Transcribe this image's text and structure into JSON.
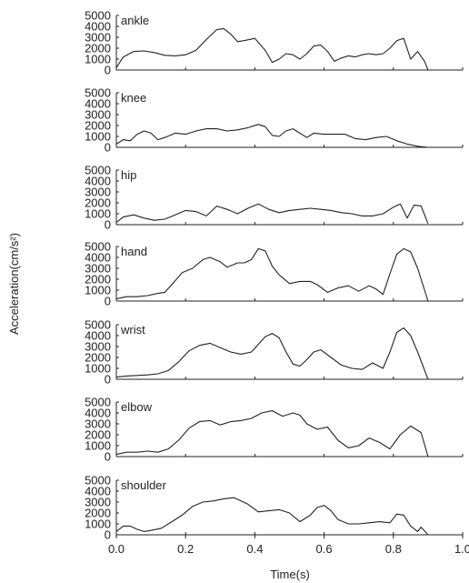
{
  "chart_data": {
    "type": "line",
    "xlabel": "Time(s)",
    "ylabel": "Acceleration(cm/s²)",
    "xlim": [
      0.0,
      1.0
    ],
    "xticks": [
      "0.0",
      "0.2",
      "0.4",
      "0.6",
      "0.8",
      "1.0"
    ],
    "ylim": [
      0,
      5000
    ],
    "yticks": [
      "0",
      "1000",
      "2000",
      "3000",
      "4000",
      "5000"
    ],
    "grid": false,
    "line_color": "#222222",
    "panels": [
      {
        "label": "ankle",
        "x": [
          0.0,
          0.02,
          0.05,
          0.08,
          0.11,
          0.14,
          0.17,
          0.2,
          0.23,
          0.26,
          0.29,
          0.31,
          0.33,
          0.35,
          0.37,
          0.4,
          0.43,
          0.45,
          0.47,
          0.49,
          0.51,
          0.53,
          0.55,
          0.57,
          0.59,
          0.61,
          0.63,
          0.65,
          0.67,
          0.69,
          0.71,
          0.73,
          0.75,
          0.77,
          0.79,
          0.81,
          0.83,
          0.85,
          0.87,
          0.89,
          0.9
        ],
        "y": [
          200,
          1200,
          1700,
          1750,
          1600,
          1350,
          1300,
          1400,
          1800,
          2800,
          3700,
          3800,
          3300,
          2600,
          2700,
          2900,
          1800,
          700,
          1000,
          1500,
          1400,
          1000,
          1500,
          2200,
          2300,
          1700,
          800,
          1100,
          1300,
          1200,
          1400,
          1500,
          1400,
          1500,
          2000,
          2700,
          2900,
          1000,
          1700,
          800,
          0
        ]
      },
      {
        "label": "knee",
        "x": [
          0.0,
          0.02,
          0.04,
          0.06,
          0.08,
          0.1,
          0.12,
          0.14,
          0.17,
          0.2,
          0.23,
          0.26,
          0.29,
          0.32,
          0.35,
          0.38,
          0.41,
          0.43,
          0.45,
          0.47,
          0.49,
          0.51,
          0.53,
          0.55,
          0.57,
          0.6,
          0.63,
          0.66,
          0.69,
          0.72,
          0.75,
          0.78,
          0.81,
          0.84,
          0.87,
          0.9
        ],
        "y": [
          300,
          700,
          600,
          1200,
          1500,
          1300,
          700,
          900,
          1300,
          1200,
          1500,
          1700,
          1700,
          1500,
          1600,
          1800,
          2100,
          1900,
          1100,
          1000,
          1500,
          1700,
          1300,
          900,
          1300,
          1200,
          1200,
          1200,
          800,
          700,
          900,
          1000,
          600,
          300,
          100,
          0
        ]
      },
      {
        "label": "hip",
        "x": [
          0.0,
          0.02,
          0.05,
          0.08,
          0.11,
          0.14,
          0.17,
          0.2,
          0.23,
          0.26,
          0.29,
          0.32,
          0.35,
          0.38,
          0.41,
          0.44,
          0.47,
          0.5,
          0.53,
          0.56,
          0.59,
          0.62,
          0.65,
          0.68,
          0.71,
          0.74,
          0.77,
          0.8,
          0.82,
          0.84,
          0.86,
          0.88,
          0.9
        ],
        "y": [
          200,
          700,
          900,
          600,
          400,
          500,
          900,
          1300,
          1200,
          800,
          1700,
          1400,
          1000,
          1500,
          1900,
          1400,
          1100,
          1300,
          1400,
          1500,
          1400,
          1300,
          1100,
          1000,
          800,
          800,
          1000,
          1600,
          1900,
          600,
          1800,
          1700,
          100
        ]
      },
      {
        "label": "hand",
        "x": [
          0.0,
          0.03,
          0.06,
          0.09,
          0.12,
          0.14,
          0.16,
          0.19,
          0.22,
          0.25,
          0.27,
          0.3,
          0.32,
          0.35,
          0.37,
          0.39,
          0.41,
          0.43,
          0.45,
          0.47,
          0.5,
          0.53,
          0.56,
          0.58,
          0.61,
          0.64,
          0.67,
          0.7,
          0.73,
          0.75,
          0.77,
          0.79,
          0.81,
          0.83,
          0.85,
          0.87,
          0.9
        ],
        "y": [
          200,
          400,
          400,
          500,
          700,
          800,
          1500,
          2600,
          3000,
          3800,
          4000,
          3600,
          3100,
          3500,
          3500,
          3800,
          4800,
          4600,
          3200,
          2400,
          1600,
          1800,
          1800,
          1500,
          800,
          1200,
          1400,
          900,
          1400,
          1100,
          600,
          2500,
          4300,
          4800,
          4500,
          3000,
          0
        ]
      },
      {
        "label": "wrist",
        "x": [
          0.0,
          0.03,
          0.06,
          0.09,
          0.12,
          0.15,
          0.18,
          0.21,
          0.24,
          0.27,
          0.3,
          0.33,
          0.36,
          0.39,
          0.41,
          0.43,
          0.45,
          0.47,
          0.49,
          0.51,
          0.53,
          0.55,
          0.57,
          0.59,
          0.62,
          0.65,
          0.68,
          0.71,
          0.74,
          0.77,
          0.79,
          0.81,
          0.83,
          0.85,
          0.87,
          0.9
        ],
        "y": [
          200,
          300,
          350,
          400,
          500,
          800,
          1600,
          2600,
          3100,
          3300,
          2900,
          2500,
          2300,
          2500,
          3200,
          3900,
          4200,
          3800,
          2500,
          1400,
          1200,
          1800,
          2500,
          2700,
          2000,
          1300,
          1000,
          900,
          1500,
          1000,
          2500,
          4300,
          4700,
          4000,
          2500,
          0
        ]
      },
      {
        "label": "elbow",
        "x": [
          0.0,
          0.03,
          0.06,
          0.09,
          0.12,
          0.15,
          0.18,
          0.21,
          0.24,
          0.27,
          0.3,
          0.33,
          0.36,
          0.39,
          0.42,
          0.45,
          0.48,
          0.51,
          0.53,
          0.55,
          0.58,
          0.61,
          0.64,
          0.67,
          0.7,
          0.73,
          0.76,
          0.79,
          0.82,
          0.85,
          0.88,
          0.9
        ],
        "y": [
          200,
          400,
          400,
          500,
          400,
          700,
          1500,
          2600,
          3200,
          3300,
          2900,
          3200,
          3300,
          3500,
          4000,
          4200,
          3700,
          4000,
          3800,
          3000,
          2500,
          2700,
          1500,
          800,
          1000,
          1700,
          1300,
          700,
          2000,
          2800,
          2200,
          0
        ]
      },
      {
        "label": "shoulder",
        "x": [
          0.0,
          0.02,
          0.04,
          0.06,
          0.08,
          0.1,
          0.13,
          0.16,
          0.19,
          0.22,
          0.25,
          0.28,
          0.31,
          0.34,
          0.36,
          0.38,
          0.41,
          0.44,
          0.47,
          0.5,
          0.53,
          0.56,
          0.58,
          0.6,
          0.62,
          0.64,
          0.67,
          0.7,
          0.73,
          0.76,
          0.79,
          0.81,
          0.83,
          0.85,
          0.87,
          0.88,
          0.9
        ],
        "y": [
          300,
          800,
          800,
          500,
          300,
          400,
          600,
          1200,
          1800,
          2600,
          3000,
          3100,
          3300,
          3400,
          3100,
          2800,
          2100,
          2200,
          2300,
          2000,
          1200,
          1800,
          2500,
          2700,
          2200,
          1400,
          1000,
          1000,
          1100,
          1200,
          1100,
          1900,
          1800,
          800,
          300,
          700,
          0
        ]
      }
    ]
  }
}
